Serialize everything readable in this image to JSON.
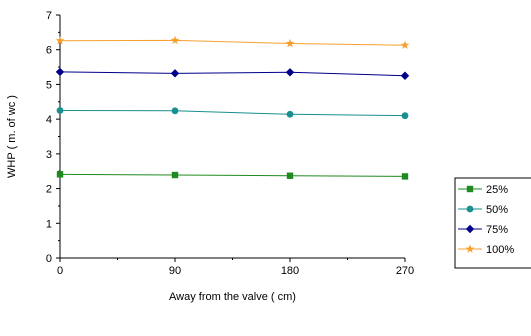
{
  "chart_data": {
    "type": "line",
    "xlabel": "Away from the valve (  cm)",
    "ylabel": "WHP (  m. of wc )",
    "x_ticks": [
      "0",
      "90",
      "180",
      "270"
    ],
    "y_ticks": [
      "0",
      "1",
      "2",
      "3",
      "4",
      "5",
      "6",
      "7"
    ],
    "xlim": [
      0,
      270
    ],
    "ylim": [
      0,
      7
    ],
    "grid": false,
    "legend_position": "right",
    "x": [
      0,
      90,
      180,
      270
    ],
    "series": [
      {
        "name": "25%",
        "values": [
          2.41,
          2.39,
          2.37,
          2.35
        ],
        "color": "#1f8a1f",
        "marker": "square"
      },
      {
        "name": "50%",
        "values": [
          4.25,
          4.24,
          4.14,
          4.1
        ],
        "color": "#1a8f8f",
        "marker": "circle"
      },
      {
        "name": "75%",
        "values": [
          5.36,
          5.32,
          5.35,
          5.25
        ],
        "color": "#00008b",
        "marker": "diamond"
      },
      {
        "name": "100%",
        "values": [
          6.26,
          6.27,
          6.18,
          6.13
        ],
        "color": "#f7a030",
        "marker": "star"
      }
    ]
  }
}
